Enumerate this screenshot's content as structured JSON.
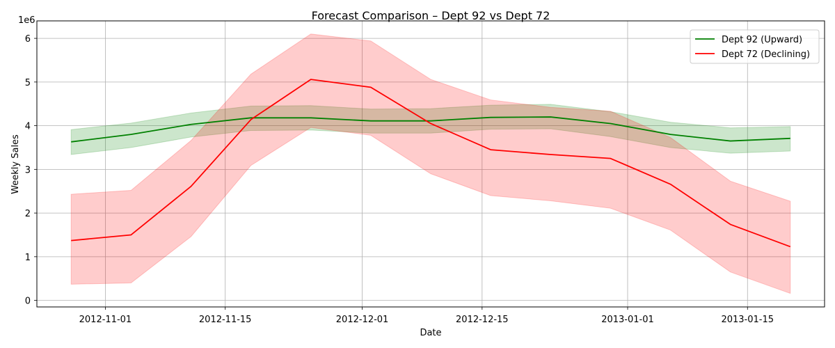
{
  "chart_data": {
    "type": "line",
    "title": "Forecast Comparison – Dept 92 vs Dept 72",
    "xlabel": "Date",
    "ylabel": "Weekly Sales",
    "y_scale_label": "1e6",
    "x_dates": [
      "2012-10-28",
      "2012-11-04",
      "2012-11-11",
      "2012-11-18",
      "2012-11-25",
      "2012-12-02",
      "2012-12-09",
      "2012-12-16",
      "2012-12-23",
      "2012-12-30",
      "2013-01-06",
      "2013-01-13",
      "2013-01-20"
    ],
    "x_range": [
      "2012-10-24",
      "2013-01-24"
    ],
    "ylim": [
      -0.15,
      6.4
    ],
    "x_ticks": [
      "2012-11-01",
      "2012-11-15",
      "2012-12-01",
      "2012-12-15",
      "2013-01-01",
      "2013-01-15"
    ],
    "y_ticks": [
      0,
      1,
      2,
      3,
      4,
      5,
      6
    ],
    "grid": true,
    "legend_position": "top-right",
    "series": [
      {
        "name": "Dept 92 (Upward)",
        "color": "#008000",
        "values": [
          3.63,
          3.8,
          4.03,
          4.18,
          4.18,
          4.11,
          4.11,
          4.19,
          4.2,
          4.05,
          3.8,
          3.65,
          3.71
        ],
        "lower": [
          3.34,
          3.5,
          3.74,
          3.89,
          3.9,
          3.83,
          3.83,
          3.92,
          3.93,
          3.75,
          3.5,
          3.37,
          3.42
        ],
        "upper": [
          3.91,
          4.06,
          4.29,
          4.45,
          4.46,
          4.38,
          4.39,
          4.47,
          4.49,
          4.32,
          4.08,
          3.95,
          3.98
        ]
      },
      {
        "name": "Dept 72 (Declining)",
        "color": "#ff0000",
        "values": [
          1.37,
          1.5,
          2.61,
          4.14,
          5.06,
          4.88,
          4.05,
          3.45,
          3.34,
          3.25,
          2.66,
          1.74,
          1.23
        ],
        "lower": [
          0.37,
          0.4,
          1.46,
          3.09,
          3.96,
          3.78,
          2.9,
          2.4,
          2.28,
          2.11,
          1.61,
          0.65,
          0.16
        ],
        "upper": [
          2.43,
          2.52,
          3.66,
          5.18,
          6.1,
          5.94,
          5.06,
          4.59,
          4.42,
          4.33,
          3.73,
          2.73,
          2.27
        ]
      }
    ]
  }
}
